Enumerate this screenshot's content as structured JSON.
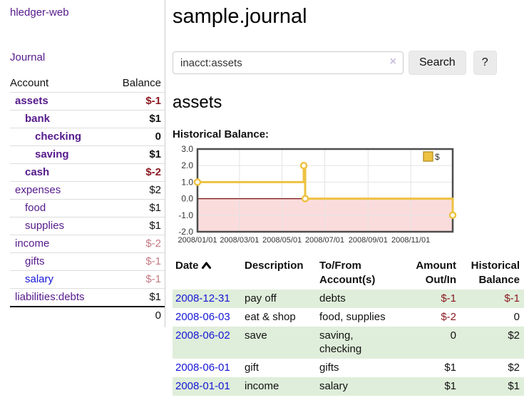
{
  "colors": {
    "link_purple": "#551a8b",
    "link_blue": "#1515d6",
    "negative_strong": "#8b1a22",
    "negative_soft": "#c47b82",
    "row_stripe_green": "#dfeeda",
    "series_gold": "#edc240",
    "negative_region_pink": "#fbdcdc",
    "zero_line_red": "#7a1010"
  },
  "sidebar": {
    "app_title": "hledger-web",
    "journal_link": "Journal",
    "table": {
      "account_header": "Account",
      "balance_header": "Balance",
      "rows": [
        {
          "name": "assets",
          "balance": "$-1",
          "depth": 1,
          "bold": true,
          "balance_style": "neg-strong",
          "name_style": "purple"
        },
        {
          "name": "bank",
          "balance": "$1",
          "depth": 2,
          "bold": true,
          "balance_style": "",
          "name_style": "purple"
        },
        {
          "name": "checking",
          "balance": "0",
          "depth": 3,
          "bold": true,
          "balance_style": "",
          "name_style": "purple"
        },
        {
          "name": "saving",
          "balance": "$1",
          "depth": 3,
          "bold": true,
          "balance_style": "",
          "name_style": "purple"
        },
        {
          "name": "cash",
          "balance": "$-2",
          "depth": 2,
          "bold": true,
          "balance_style": "neg-strong",
          "name_style": "purple"
        },
        {
          "name": "expenses",
          "balance": "$2",
          "depth": 1,
          "bold": false,
          "balance_style": "",
          "name_style": "purple"
        },
        {
          "name": "food",
          "balance": "$1",
          "depth": 2,
          "bold": false,
          "balance_style": "",
          "name_style": "purple"
        },
        {
          "name": "supplies",
          "balance": "$1",
          "depth": 2,
          "bold": false,
          "balance_style": "",
          "name_style": "purple"
        },
        {
          "name": "income",
          "balance": "$-2",
          "depth": 1,
          "bold": false,
          "balance_style": "neg-soft",
          "name_style": "purple"
        },
        {
          "name": "gifts",
          "balance": "$-1",
          "depth": 2,
          "bold": false,
          "balance_style": "neg-soft",
          "name_style": "purple"
        },
        {
          "name": "salary",
          "balance": "$-1",
          "depth": 2,
          "bold": false,
          "balance_style": "neg-soft",
          "name_style": "blue"
        },
        {
          "name": "liabilities:debts",
          "balance": "$1",
          "depth": 1,
          "bold": false,
          "balance_style": "",
          "name_style": "purple"
        }
      ],
      "total_balance": "0"
    }
  },
  "main": {
    "title": "sample.journal",
    "search": {
      "value": "inacct:assets",
      "clear_icon": "×",
      "search_button": "Search",
      "help_button": "?"
    },
    "account_heading": "assets",
    "chart_title": "Historical Balance:"
  },
  "chart_data": {
    "type": "line",
    "step": true,
    "title": "Historical Balance:",
    "x_start": "2008-01-01",
    "x_end": "2008-12-31",
    "x_ticks": [
      "2008/01/01",
      "2008/03/01",
      "2008/05/01",
      "2008/07/01",
      "2008/09/01",
      "2008/11/01"
    ],
    "y_ticks": [
      3.0,
      2.0,
      1.0,
      0.0,
      -1.0,
      -2.0
    ],
    "ylim": [
      -2.0,
      3.0
    ],
    "grid": true,
    "legend": {
      "label": "$",
      "position": "top-right"
    },
    "negative_region_fill": "#fbdcdc",
    "series": [
      {
        "name": "$",
        "color": "#edc240",
        "points": [
          [
            "2008-01-01",
            1.0
          ],
          [
            "2008-06-01",
            2.0
          ],
          [
            "2008-06-03",
            0.0
          ],
          [
            "2008-12-31",
            -1.0
          ]
        ]
      }
    ]
  },
  "register": {
    "headers": {
      "date": "Date",
      "description": "Description",
      "accounts": "To/From Account(s)",
      "amount": "Amount Out/In",
      "balance": "Historical Balance"
    },
    "sort_icon": "chevron-up",
    "rows": [
      {
        "date": "2008-12-31",
        "description": "pay off",
        "accounts": "debts",
        "amount": "$-1",
        "amount_neg": true,
        "balance": "$-1",
        "balance_neg": true
      },
      {
        "date": "2008-06-03",
        "description": "eat & shop",
        "accounts": "food, supplies",
        "amount": "$-2",
        "amount_neg": true,
        "balance": "0",
        "balance_neg": false
      },
      {
        "date": "2008-06-02",
        "description": "save",
        "accounts": "saving,\nchecking",
        "amount": "0",
        "amount_neg": false,
        "balance": "$2",
        "balance_neg": false
      },
      {
        "date": "2008-06-01",
        "description": "gift",
        "accounts": "gifts",
        "amount": "$1",
        "amount_neg": false,
        "balance": "$2",
        "balance_neg": false
      },
      {
        "date": "2008-01-01",
        "description": "income",
        "accounts": "salary",
        "amount": "$1",
        "amount_neg": false,
        "balance": "$1",
        "balance_neg": false
      }
    ]
  }
}
